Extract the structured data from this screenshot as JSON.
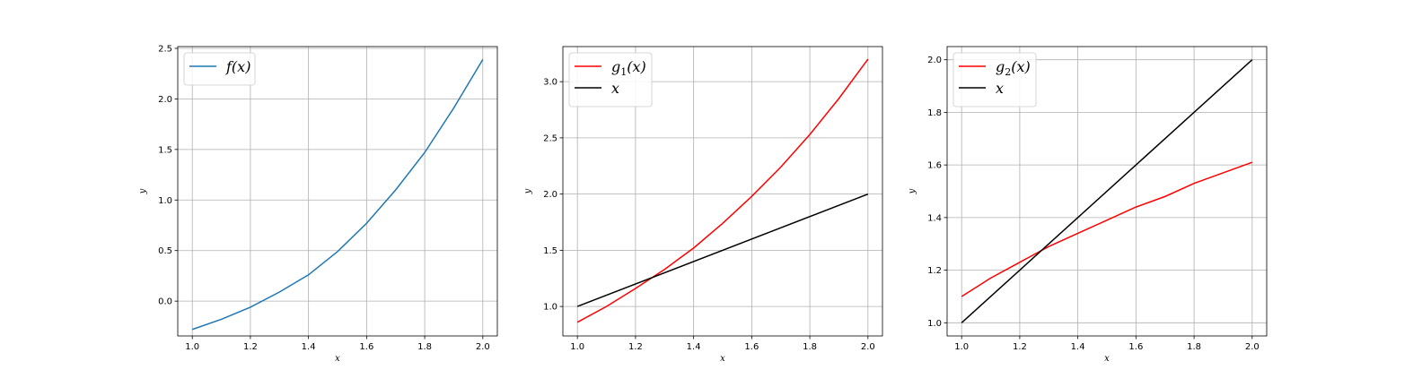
{
  "chart_data": [
    {
      "type": "line",
      "title": "",
      "xlabel": "x",
      "ylabel": "y",
      "xlim": [
        0.95,
        2.05
      ],
      "ylim": [
        -0.3442,
        2.5175
      ],
      "xticks": [
        1.0,
        1.2,
        1.4,
        1.6,
        1.8,
        2.0
      ],
      "xtick_labels": [
        "1.0",
        "1.2",
        "1.4",
        "1.6",
        "1.8",
        "2.0"
      ],
      "yticks": [
        0.0,
        0.5,
        1.0,
        1.5,
        2.0,
        2.5
      ],
      "ytick_labels": [
        "0.0",
        "0.5",
        "1.0",
        "1.5",
        "2.0",
        "2.5"
      ],
      "grid": true,
      "legend_position": "top-left",
      "series": [
        {
          "name": "f(x)",
          "label_main": "f",
          "label_sub": "",
          "label_tail": "(x)",
          "color": "#1f77b4",
          "x": [
            1.0,
            1.1,
            1.2,
            1.3,
            1.4,
            1.5,
            1.6,
            1.7,
            1.8,
            1.9,
            2.0
          ],
          "y": [
            -0.28,
            -0.18,
            -0.06,
            0.09,
            0.26,
            0.49,
            0.77,
            1.1,
            1.47,
            1.91,
            2.39
          ]
        }
      ]
    },
    {
      "type": "line",
      "title": "",
      "xlabel": "x",
      "ylabel": "y",
      "xlim": [
        0.95,
        2.05
      ],
      "ylim": [
        0.7379,
        3.3121
      ],
      "xticks": [
        1.0,
        1.2,
        1.4,
        1.6,
        1.8,
        2.0
      ],
      "xtick_labels": [
        "1.0",
        "1.2",
        "1.4",
        "1.6",
        "1.8",
        "2.0"
      ],
      "yticks": [
        1.0,
        1.5,
        2.0,
        2.5,
        3.0
      ],
      "ytick_labels": [
        "1.0",
        "1.5",
        "2.0",
        "2.5",
        "3.0"
      ],
      "grid": true,
      "legend_position": "top-left",
      "series": [
        {
          "name": "g1(x)",
          "label_main": "g",
          "label_sub": "1",
          "label_tail": "(x)",
          "color": "#ff0000",
          "x": [
            1.0,
            1.1,
            1.2,
            1.3,
            1.4,
            1.5,
            1.6,
            1.7,
            1.8,
            1.9,
            2.0
          ],
          "y": [
            0.86,
            1.0,
            1.16,
            1.33,
            1.52,
            1.74,
            1.98,
            2.24,
            2.53,
            2.85,
            3.2
          ]
        },
        {
          "name": "x",
          "label_main": "x",
          "label_sub": "",
          "label_tail": "",
          "color": "#000000",
          "x": [
            1.0,
            2.0
          ],
          "y": [
            1.0,
            2.0
          ]
        }
      ]
    },
    {
      "type": "line",
      "title": "",
      "xlabel": "x",
      "ylabel": "y",
      "xlim": [
        0.95,
        2.05
      ],
      "ylim": [
        0.95,
        2.05
      ],
      "xticks": [
        1.0,
        1.2,
        1.4,
        1.6,
        1.8,
        2.0
      ],
      "xtick_labels": [
        "1.0",
        "1.2",
        "1.4",
        "1.6",
        "1.8",
        "2.0"
      ],
      "yticks": [
        1.0,
        1.2,
        1.4,
        1.6,
        1.8,
        2.0
      ],
      "ytick_labels": [
        "1.0",
        "1.2",
        "1.4",
        "1.6",
        "1.8",
        "2.0"
      ],
      "grid": true,
      "legend_position": "top-left",
      "series": [
        {
          "name": "g2(x)",
          "label_main": "g",
          "label_sub": "2",
          "label_tail": "(x)",
          "color": "#ff0000",
          "x": [
            1.0,
            1.1,
            1.2,
            1.3,
            1.4,
            1.5,
            1.6,
            1.7,
            1.8,
            1.9,
            2.0
          ],
          "y": [
            1.1,
            1.17,
            1.23,
            1.29,
            1.34,
            1.39,
            1.44,
            1.48,
            1.53,
            1.57,
            1.61
          ]
        },
        {
          "name": "x",
          "label_main": "x",
          "label_sub": "",
          "label_tail": "",
          "color": "#000000",
          "x": [
            1.0,
            2.0
          ],
          "y": [
            1.0,
            2.0
          ]
        }
      ]
    }
  ]
}
